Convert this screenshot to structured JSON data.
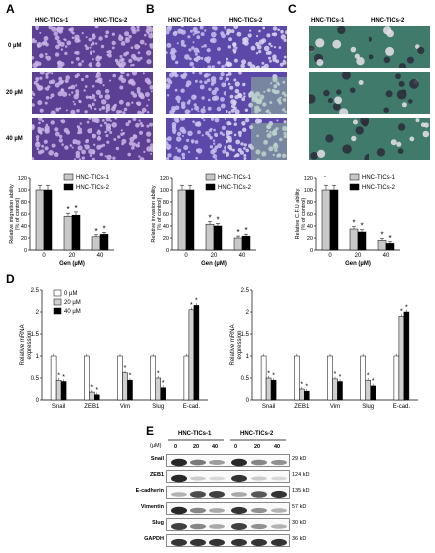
{
  "panel_labels": {
    "a": "A",
    "b": "B",
    "c": "C",
    "d": "D",
    "e": "E"
  },
  "cells": {
    "c1": "HNC-TICs-1",
    "c2": "HNC-TICs-2"
  },
  "doses": [
    "0 µM",
    "20 µM",
    "40 µM"
  ],
  "chart_data": [
    {
      "type": "bar",
      "panel": "A",
      "ylabel": "Relative migration ability (% of control)",
      "xlabel": "Gen (µM)",
      "categories": [
        "0",
        "20",
        "40"
      ],
      "ylim": [
        0,
        120
      ],
      "yticks": [
        "0",
        "20",
        "40",
        "60",
        "80",
        "100",
        "120"
      ],
      "series": [
        {
          "name": "HNC-TICs-1",
          "values": [
            100,
            56,
            22
          ],
          "color": "#c8c8c8"
        },
        {
          "name": "HNC-TICs-2",
          "values": [
            100,
            58,
            26
          ],
          "color": "#000000"
        }
      ],
      "annotations": [
        "*",
        "*",
        "*",
        "*"
      ]
    },
    {
      "type": "bar",
      "panel": "B",
      "ylabel": "Relative invasion ability (% of control)",
      "xlabel": "Gen (µM)",
      "categories": [
        "0",
        "20",
        "40"
      ],
      "ylim": [
        0,
        120
      ],
      "yticks": [
        "0",
        "20",
        "40",
        "60",
        "80",
        "100",
        "120"
      ],
      "series": [
        {
          "name": "HNC-TICs-1",
          "values": [
            100,
            43,
            20
          ],
          "color": "#c8c8c8"
        },
        {
          "name": "HNC-TICs-2",
          "values": [
            100,
            40,
            23
          ],
          "color": "#000000"
        }
      ],
      "annotations": [
        "*",
        "*",
        "*",
        "*"
      ]
    },
    {
      "type": "bar",
      "panel": "C",
      "ylabel": "Relative C.F.U ability (% of control)",
      "xlabel": "Gen (µM)",
      "categories": [
        "0",
        "20",
        "40"
      ],
      "ylim": [
        0,
        120
      ],
      "yticks": [
        "0",
        "20",
        "40",
        "60",
        "80",
        "100",
        "120"
      ],
      "series": [
        {
          "name": "HNC-TICs-1",
          "values": [
            100,
            35,
            16
          ],
          "color": "#c8c8c8"
        },
        {
          "name": "HNC-TICs-2",
          "values": [
            100,
            30,
            11
          ],
          "color": "#000000"
        }
      ],
      "annotations": [
        "*",
        "*",
        "*",
        "*"
      ],
      "extra_mark": "-"
    },
    {
      "type": "bar",
      "panel": "D-left",
      "ylabel": "Relative mRNA expression",
      "categories": [
        "Snail",
        "ZEB1",
        "Vim",
        "Slug",
        "E-cad."
      ],
      "ylim": [
        0,
        2.5
      ],
      "yticks": [
        "0",
        "0.5",
        "1",
        "1.5",
        "2",
        "2.5"
      ],
      "series": [
        {
          "name": "0 µM",
          "values": [
            1,
            1,
            1,
            1,
            1
          ],
          "color": "#ffffff"
        },
        {
          "name": "20 µM",
          "values": [
            0.45,
            0.18,
            0.62,
            0.5,
            2.05
          ],
          "color": "#d0d0d0"
        },
        {
          "name": "40 µM",
          "values": [
            0.42,
            0.12,
            0.45,
            0.28,
            2.15
          ],
          "color": "#000000"
        }
      ],
      "annotations": [
        "*",
        "*",
        "*",
        "*",
        "*",
        "*",
        "*",
        "*",
        "*",
        "*"
      ]
    },
    {
      "type": "bar",
      "panel": "D-right",
      "ylabel": "Relative mRNA expression",
      "categories": [
        "Snail",
        "ZEB1",
        "Vim",
        "Slug",
        "E-cad."
      ],
      "ylim": [
        0,
        2.5
      ],
      "yticks": [
        "0",
        "0.5",
        "1",
        "1.5",
        "2",
        "2.5"
      ],
      "series": [
        {
          "name": "0 µM",
          "values": [
            1,
            1,
            1,
            1,
            1
          ],
          "color": "#ffffff"
        },
        {
          "name": "20 µM",
          "values": [
            0.5,
            0.25,
            0.48,
            0.45,
            1.9
          ],
          "color": "#d0d0d0"
        },
        {
          "name": "40 µM",
          "values": [
            0.45,
            0.2,
            0.42,
            0.32,
            2.0
          ],
          "color": "#000000"
        }
      ],
      "annotations": [
        "*",
        "*",
        "*",
        "*",
        "*",
        "*",
        "*",
        "*",
        "*",
        "*"
      ]
    }
  ],
  "blot": {
    "unit": "(µM)",
    "lanes": [
      "0",
      "20",
      "40",
      "0",
      "20",
      "40"
    ],
    "rows": [
      {
        "label": "Snail",
        "kd": "29 kD",
        "levels": [
          0.9,
          0.55,
          0.4,
          0.9,
          0.5,
          0.45
        ]
      },
      {
        "label": "ZEB1",
        "kd": "124 kD",
        "levels": [
          0.9,
          0.2,
          0.15,
          0.85,
          0.2,
          0.15
        ]
      },
      {
        "label": "E-cadherin",
        "kd": "135 kD",
        "levels": [
          0.3,
          0.75,
          0.8,
          0.35,
          0.7,
          0.85
        ]
      },
      {
        "label": "Vimentin",
        "kd": "57 kD",
        "levels": [
          0.9,
          0.5,
          0.35,
          0.85,
          0.45,
          0.3
        ]
      },
      {
        "label": "Slug",
        "kd": "30 kD",
        "levels": [
          0.8,
          0.5,
          0.35,
          0.8,
          0.45,
          0.3
        ]
      },
      {
        "label": "GAPDH",
        "kd": "36 kD",
        "levels": [
          0.85,
          0.85,
          0.85,
          0.85,
          0.85,
          0.85
        ]
      }
    ]
  }
}
